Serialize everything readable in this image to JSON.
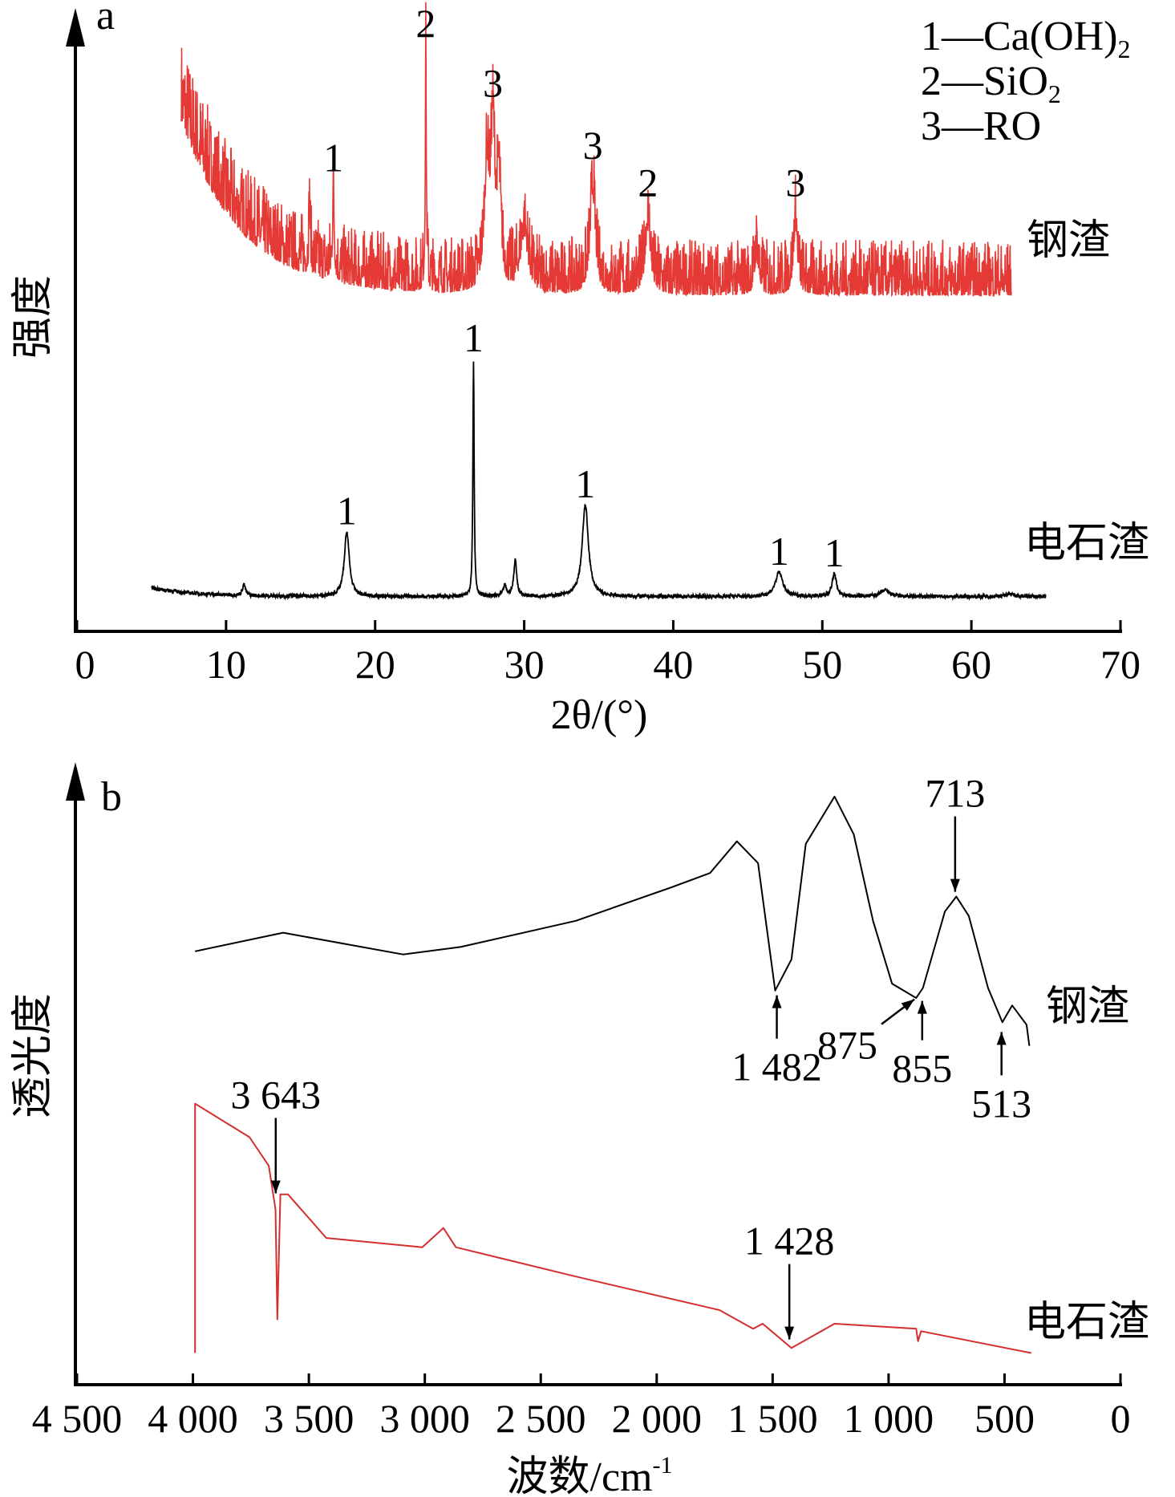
{
  "chart_data": [
    {
      "panel": "a",
      "type": "line",
      "panel_label": "a",
      "xlabel": "2θ/(°)",
      "ylabel": "强度",
      "xlim": [
        0,
        70
      ],
      "xticks": [
        "0",
        "10",
        "20",
        "30",
        "40",
        "50",
        "60",
        "70"
      ],
      "ylim": [
        0,
        100
      ],
      "yunits": "arbitrary",
      "legend": {
        "placement": "top-right",
        "entries": [
          {
            "key": "1",
            "text": "Ca(OH)",
            "sub": "2"
          },
          {
            "key": "2",
            "text": "SiO",
            "sub": "2"
          },
          {
            "key": "3",
            "text": "RO",
            "sub": ""
          }
        ],
        "dash": "—"
      },
      "series": [
        {
          "name": "钢渣",
          "color": "#e53935",
          "x_range": [
            7,
            62.7
          ],
          "background": {
            "base": 54,
            "decay_amp": 28,
            "decay_len": 4
          },
          "noise_amplitude": 9,
          "peaks": [
            [
              15.6,
              10,
              0.05
            ],
            [
              17.2,
              14,
              0.06
            ],
            [
              23.4,
              38,
              0.04
            ],
            [
              27.5,
              18,
              0.2
            ],
            [
              27.9,
              24,
              0.15
            ],
            [
              28.3,
              16,
              0.15
            ],
            [
              30.0,
              9,
              0.3
            ],
            [
              34.6,
              16,
              0.2
            ],
            [
              38.3,
              11,
              0.2
            ],
            [
              45.6,
              6,
              0.15
            ],
            [
              48.2,
              11,
              0.15
            ]
          ],
          "peak_labels": [
            {
              "text": "1",
              "x": 17.2,
              "y": 73
            },
            {
              "text": "2",
              "x": 23.4,
              "y": 94.6
            },
            {
              "text": "3",
              "x": 27.9,
              "y": 85
            },
            {
              "text": "3",
              "x": 34.6,
              "y": 75
            },
            {
              "text": "2",
              "x": 38.3,
              "y": 69
            },
            {
              "text": "3",
              "x": 48.2,
              "y": 69
            }
          ]
        },
        {
          "name": "电石渣",
          "color": "#000000",
          "x_range": [
            5,
            65
          ],
          "background": {
            "base": 5.6,
            "decay_amp": 1.4,
            "decay_len": 3
          },
          "noise_amplitude": 0.6,
          "peaks": [
            [
              11.2,
              1.8,
              0.12
            ],
            [
              18.1,
              10.4,
              0.2
            ],
            [
              26.6,
              38,
              0.05
            ],
            [
              28.7,
              1.7,
              0.12
            ],
            [
              29.4,
              5.8,
              0.12
            ],
            [
              34.1,
              14.7,
              0.25
            ],
            [
              47.1,
              3.9,
              0.3
            ],
            [
              50.8,
              3.6,
              0.18
            ],
            [
              54.2,
              1.0,
              0.35
            ],
            [
              62.6,
              0.5,
              0.3
            ]
          ],
          "peak_labels": [
            {
              "text": "1",
              "x": 18.1,
              "y": 16.2
            },
            {
              "text": "1",
              "x": 26.6,
              "y": 44
            },
            {
              "text": "1",
              "x": 34.1,
              "y": 20.5
            },
            {
              "text": "1",
              "x": 47.1,
              "y": 9.7
            },
            {
              "text": "1",
              "x": 50.8,
              "y": 9.4
            }
          ]
        }
      ]
    },
    {
      "panel": "b",
      "type": "line",
      "panel_label": "b",
      "xlabel": "波数/cm",
      "xlabel_sup": "-1",
      "ylabel": "透光度",
      "xlim": [
        4500,
        0
      ],
      "xticks": [
        "4 500",
        "4 000",
        "3 500",
        "3 000",
        "2 500",
        "2 000",
        "1 500",
        "1 000",
        "500",
        "0"
      ],
      "ylim": [
        0,
        100
      ],
      "yunits": "arbitrary",
      "series": [
        {
          "name": "钢渣",
          "color": "#000000",
          "points": [
            [
              3991,
              69.7
            ],
            [
              3611,
              72.7
            ],
            [
              3094,
              69.2
            ],
            [
              2846,
              70.4
            ],
            [
              2349,
              74.6
            ],
            [
              1936,
              80.0
            ],
            [
              1770,
              82.3
            ],
            [
              1654,
              87.4
            ],
            [
              1563,
              83.9
            ],
            [
              1489,
              63.4
            ],
            [
              1419,
              68.4
            ],
            [
              1357,
              87.0
            ],
            [
              1233,
              94.6
            ],
            [
              1150,
              88.5
            ],
            [
              1067,
              74.6
            ],
            [
              985,
              64.5
            ],
            [
              881,
              62.2
            ],
            [
              852,
              63.8
            ],
            [
              757,
              76.1
            ],
            [
              708,
              78.5
            ],
            [
              654,
              75.4
            ],
            [
              571,
              63.8
            ],
            [
              509,
              58.3
            ],
            [
              467,
              61.0
            ],
            [
              405,
              57.9
            ],
            [
              393,
              54.5
            ]
          ],
          "annotations": [
            {
              "text": "1 482",
              "x": 1482,
              "y": 63.4,
              "dir": "up"
            },
            {
              "text": "875",
              "x": 875,
              "y": 62.5,
              "dir": "diag"
            },
            {
              "text": "855",
              "x": 855,
              "y": 62.5,
              "dir": "up"
            },
            {
              "text": "513",
              "x": 513,
              "y": 57.5,
              "dir": "up"
            },
            {
              "text": "713",
              "x": 713,
              "y": 78.5,
              "dir": "down"
            }
          ]
        },
        {
          "name": "电石渣",
          "color": "#d32f2f",
          "points": [
            [
              3991,
              5.1
            ],
            [
              3991,
              45.2
            ],
            [
              3756,
              39.8
            ],
            [
              3673,
              35.2
            ],
            [
              3644,
              28.2
            ],
            [
              3636,
              10.5
            ],
            [
              3623,
              30.6
            ],
            [
              3590,
              30.6
            ],
            [
              3425,
              23.6
            ],
            [
              3011,
              22.1
            ],
            [
              2920,
              25.2
            ],
            [
              2866,
              22.1
            ],
            [
              2349,
              17.4
            ],
            [
              1729,
              12.0
            ],
            [
              1584,
              9.0
            ],
            [
              1543,
              9.8
            ],
            [
              1419,
              5.9
            ],
            [
              1233,
              9.8
            ],
            [
              881,
              9.0
            ],
            [
              873,
              7.0
            ],
            [
              860,
              8.6
            ],
            [
              385,
              5.1
            ]
          ],
          "annotations": [
            {
              "text": "3 643",
              "x": 3643,
              "y": 30,
              "dir": "down"
            },
            {
              "text": "1 428",
              "x": 1428,
              "y": 6.5,
              "dir": "down"
            }
          ]
        }
      ]
    }
  ]
}
